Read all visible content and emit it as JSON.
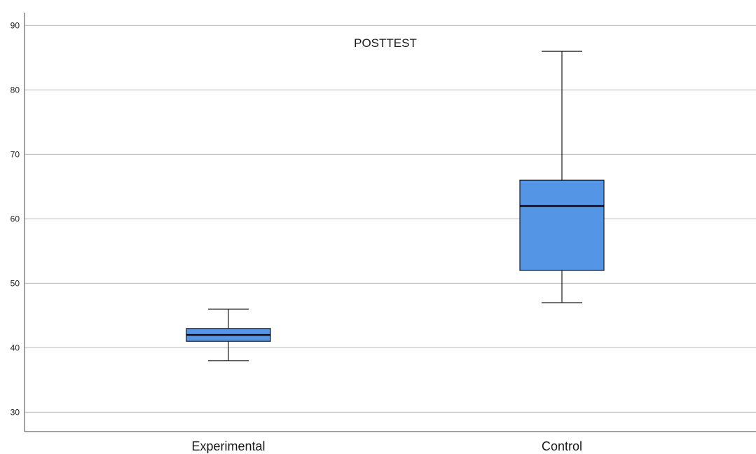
{
  "chart_data": {
    "type": "boxplot",
    "title": "POSTTEST",
    "xlabel": "",
    "ylabel": "",
    "categories": [
      "Experimental",
      "Control"
    ],
    "boxes": [
      {
        "category": "Experimental",
        "whisker_low": 38,
        "q1": 41,
        "median": 42,
        "q3": 43,
        "whisker_high": 46
      },
      {
        "category": "Control",
        "whisker_low": 47,
        "q1": 52,
        "median": 62,
        "q3": 66,
        "whisker_high": 86
      }
    ],
    "y_ticks": [
      30,
      40,
      50,
      60,
      70,
      80,
      90
    ],
    "ylim": [
      27,
      92
    ],
    "grid": true,
    "colors": {
      "box_fill": "#5595e5",
      "stroke": "#1a1a1a",
      "grid": "#c8c8c8"
    }
  }
}
